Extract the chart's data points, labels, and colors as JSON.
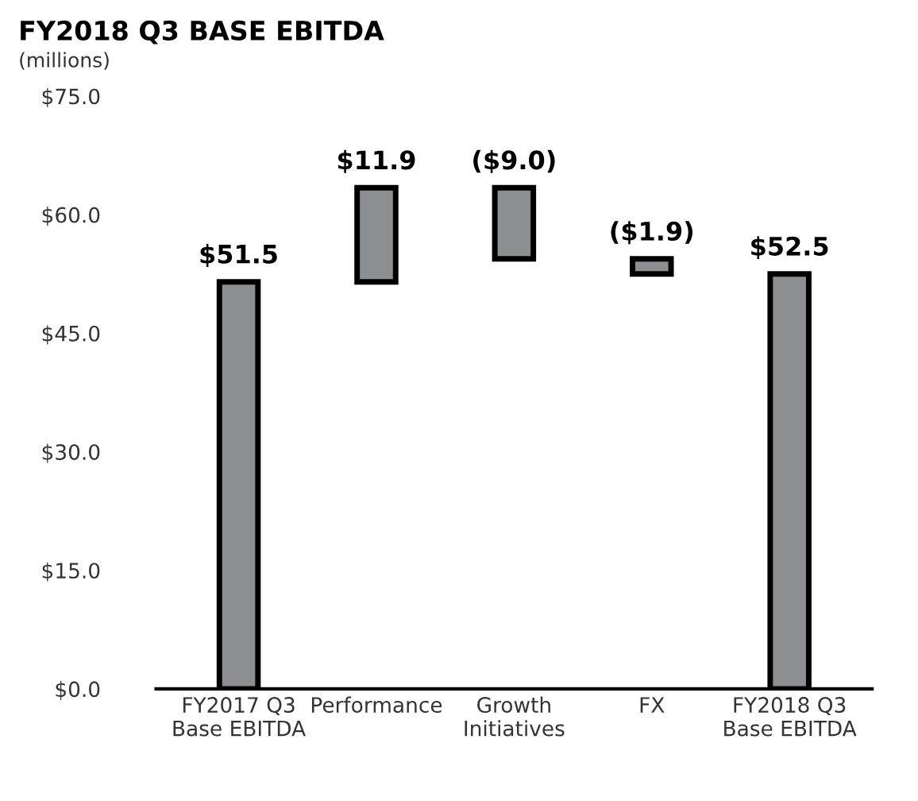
{
  "chart_data": {
    "type": "bar",
    "title": "FY2018 Q3 BASE EBITDA",
    "subtitle": "(millions)",
    "categories": [
      "FY2017 Q3\nBase EBITDA",
      "Performance",
      "Growth\nInitiatives",
      "FX",
      "FY2018 Q3\nBase EBITDA"
    ],
    "values": [
      51.5,
      11.9,
      -9.0,
      -1.9,
      52.5
    ],
    "base": [
      0,
      51.5,
      63.4,
      54.4,
      0
    ],
    "value_labels": [
      "$51.5",
      "$11.9",
      "($9.0)",
      "($1.9)",
      "$52.5"
    ],
    "color": "#8c8f90",
    "ylim": [
      0,
      75
    ],
    "yticks": [
      {
        "value": 0,
        "label": "$0.0"
      },
      {
        "value": 15,
        "label": "$15.0"
      },
      {
        "value": 30,
        "label": "$30.0"
      },
      {
        "value": 45,
        "label": "$45.0"
      },
      {
        "value": 60,
        "label": "$60.0"
      },
      {
        "value": 75,
        "label": "$75.0"
      }
    ],
    "grid": false,
    "legend": false
  }
}
